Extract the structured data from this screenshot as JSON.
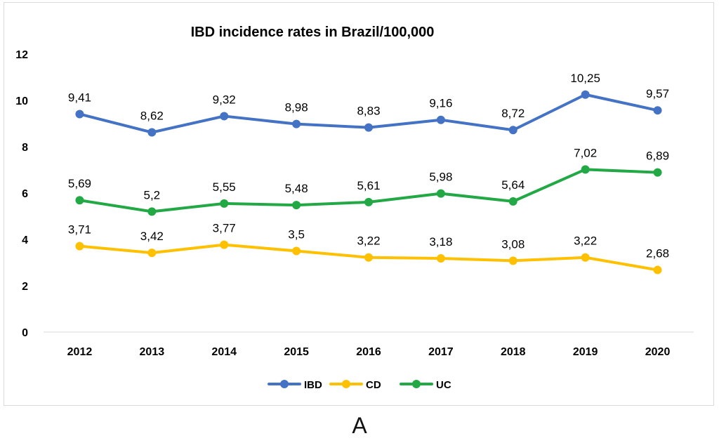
{
  "panel_label": "A",
  "chart_data": {
    "type": "line",
    "title": "IBD incidence rates in Brazil/100,000",
    "xlabel": "",
    "ylabel": "",
    "categories": [
      "2012",
      "2013",
      "2014",
      "2015",
      "2016",
      "2017",
      "2018",
      "2019",
      "2020"
    ],
    "ylim": [
      0,
      12
    ],
    "yticks": [
      0,
      2,
      4,
      6,
      8,
      10,
      12
    ],
    "grid": false,
    "legend_position": "bottom",
    "series": [
      {
        "name": "IBD",
        "color": "#4472C4",
        "values": [
          9.41,
          8.62,
          9.32,
          8.98,
          8.83,
          9.16,
          8.72,
          10.25,
          9.57
        ],
        "labels": [
          "9,41",
          "8,62",
          "9,32",
          "8,98",
          "8,83",
          "9,16",
          "8,72",
          "10,25",
          "9,57"
        ]
      },
      {
        "name": "CD",
        "color": "#FFC000",
        "values": [
          3.71,
          3.42,
          3.77,
          3.5,
          3.22,
          3.18,
          3.08,
          3.22,
          2.68
        ],
        "labels": [
          "3,71",
          "3,42",
          "3,77",
          "3,5",
          "3,22",
          "3,18",
          "3,08",
          "3,22",
          "2,68"
        ]
      },
      {
        "name": "UC",
        "color": "#22A845",
        "values": [
          5.69,
          5.2,
          5.55,
          5.48,
          5.61,
          5.98,
          5.64,
          7.02,
          6.89
        ],
        "labels": [
          "5,69",
          "5,2",
          "5,55",
          "5,48",
          "5,61",
          "5,98",
          "5,64",
          "7,02",
          "6,89"
        ]
      }
    ]
  }
}
